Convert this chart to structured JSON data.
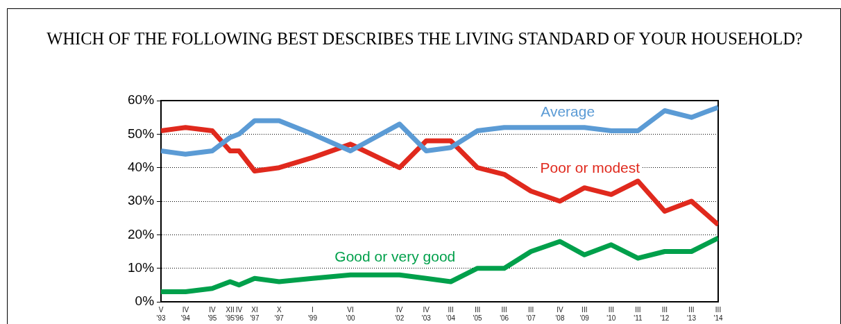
{
  "chart_data": {
    "type": "line",
    "title": "WHICH OF THE FOLLOWING BEST DESCRIBES THE LIVING STANDARD OF YOUR HOUSEHOLD?",
    "x": [
      "1993-05",
      "1994-04",
      "1995-04",
      "1995-12",
      "1996-04",
      "1996-11",
      "1997-10",
      "1999-01",
      "2000-06",
      "2002-04",
      "2003-04",
      "2004-03",
      "2005-03",
      "2006-03",
      "2007-03",
      "2008-04",
      "2009-03",
      "2010-03",
      "2011-03",
      "2012-03",
      "2013-03",
      "2014-03"
    ],
    "series": [
      {
        "name": "Average",
        "color": "#5b9bd5",
        "values": [
          45,
          44,
          45,
          49,
          50,
          54,
          54,
          50,
          45,
          53,
          45,
          46,
          51,
          52,
          52,
          52,
          52,
          51,
          51,
          57,
          55,
          58
        ]
      },
      {
        "name": "Poor or modest",
        "color": "#e0291d",
        "values": [
          51,
          52,
          51,
          45,
          45,
          39,
          40,
          43,
          47,
          40,
          48,
          48,
          40,
          38,
          33,
          30,
          34,
          32,
          36,
          27,
          30,
          23
        ]
      },
      {
        "name": "Good or very good",
        "color": "#00a04b",
        "values": [
          3,
          3,
          4,
          6,
          5,
          7,
          6,
          7,
          8,
          8,
          7,
          6,
          10,
          10,
          15,
          18,
          14,
          17,
          13,
          15,
          15,
          19
        ]
      }
    ],
    "xlim": [
      "1993-05",
      "2014-03"
    ],
    "xticks": [
      {
        "value": "1993-05",
        "label": "V '93"
      },
      {
        "value": "1994-04",
        "label": "IV '94"
      },
      {
        "value": "1995-04",
        "label": "IV '95"
      },
      {
        "value": "1995-12",
        "label": "XII '95"
      },
      {
        "value": "1996-04",
        "label": "IV '96"
      },
      {
        "value": "1996-11",
        "label": "XI '97"
      },
      {
        "value": "1997-10",
        "label": "X '97"
      },
      {
        "value": "1999-01",
        "label": "I '99"
      },
      {
        "value": "2000-06",
        "label": "VI '00"
      },
      {
        "value": "2002-04",
        "label": "IV '02"
      },
      {
        "value": "2003-04",
        "label": "IV '03"
      },
      {
        "value": "2004-03",
        "label": "III '04"
      },
      {
        "value": "2005-03",
        "label": "III '05"
      },
      {
        "value": "2006-03",
        "label": "III '06"
      },
      {
        "value": "2007-03",
        "label": "III '07"
      },
      {
        "value": "2008-04",
        "label": "IV '08"
      },
      {
        "value": "2009-03",
        "label": "III '09"
      },
      {
        "value": "2010-03",
        "label": "III '10"
      },
      {
        "value": "2011-03",
        "label": "III '11"
      },
      {
        "value": "2012-03",
        "label": "III '12"
      },
      {
        "value": "2013-03",
        "label": "III '13"
      },
      {
        "value": "2014-03",
        "label": "III '14"
      }
    ],
    "ylim": [
      0,
      60
    ],
    "yticks": [
      {
        "value": 0,
        "label": "0%"
      },
      {
        "value": 10,
        "label": "10%"
      },
      {
        "value": 20,
        "label": "20%"
      },
      {
        "value": 30,
        "label": "30%"
      },
      {
        "value": 40,
        "label": "40%"
      },
      {
        "value": 50,
        "label": "50%"
      },
      {
        "value": 60,
        "label": "60%"
      }
    ],
    "grid": "y",
    "legend": false,
    "marker": "none",
    "line_style": "solid"
  }
}
